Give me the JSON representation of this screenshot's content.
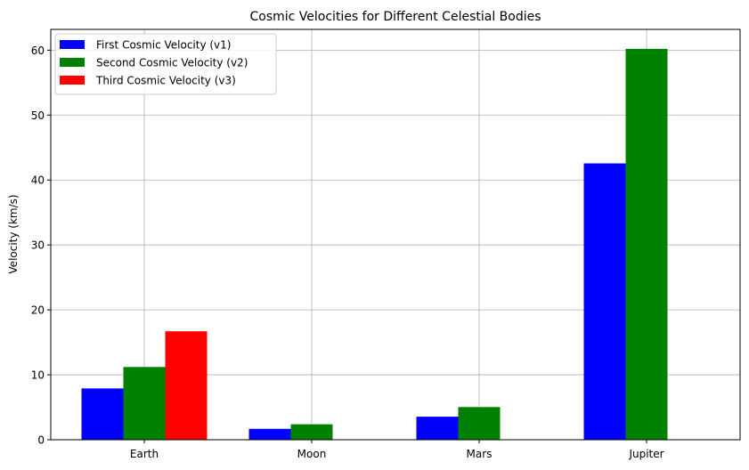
{
  "chart_data": {
    "type": "bar",
    "title": "Cosmic Velocities for Different Celestial Bodies",
    "xlabel": "",
    "ylabel": "Velocity (km/s)",
    "categories": [
      "Earth",
      "Moon",
      "Mars",
      "Jupiter"
    ],
    "series": [
      {
        "name": "First Cosmic Velocity (v1)",
        "color": "#0000ff",
        "values": [
          7.9,
          1.68,
          3.55,
          42.56
        ]
      },
      {
        "name": "Second Cosmic Velocity (v2)",
        "color": "#008000",
        "values": [
          11.2,
          2.38,
          5.03,
          60.2
        ]
      },
      {
        "name": "Third Cosmic Velocity (v3)",
        "color": "#ff0000",
        "values": [
          16.7,
          0,
          0,
          0
        ]
      }
    ],
    "ylim": [
      0,
      63.2
    ],
    "yticks": [
      0,
      10,
      20,
      30,
      40,
      50,
      60
    ],
    "grid": true,
    "legend_position": "top-left"
  }
}
